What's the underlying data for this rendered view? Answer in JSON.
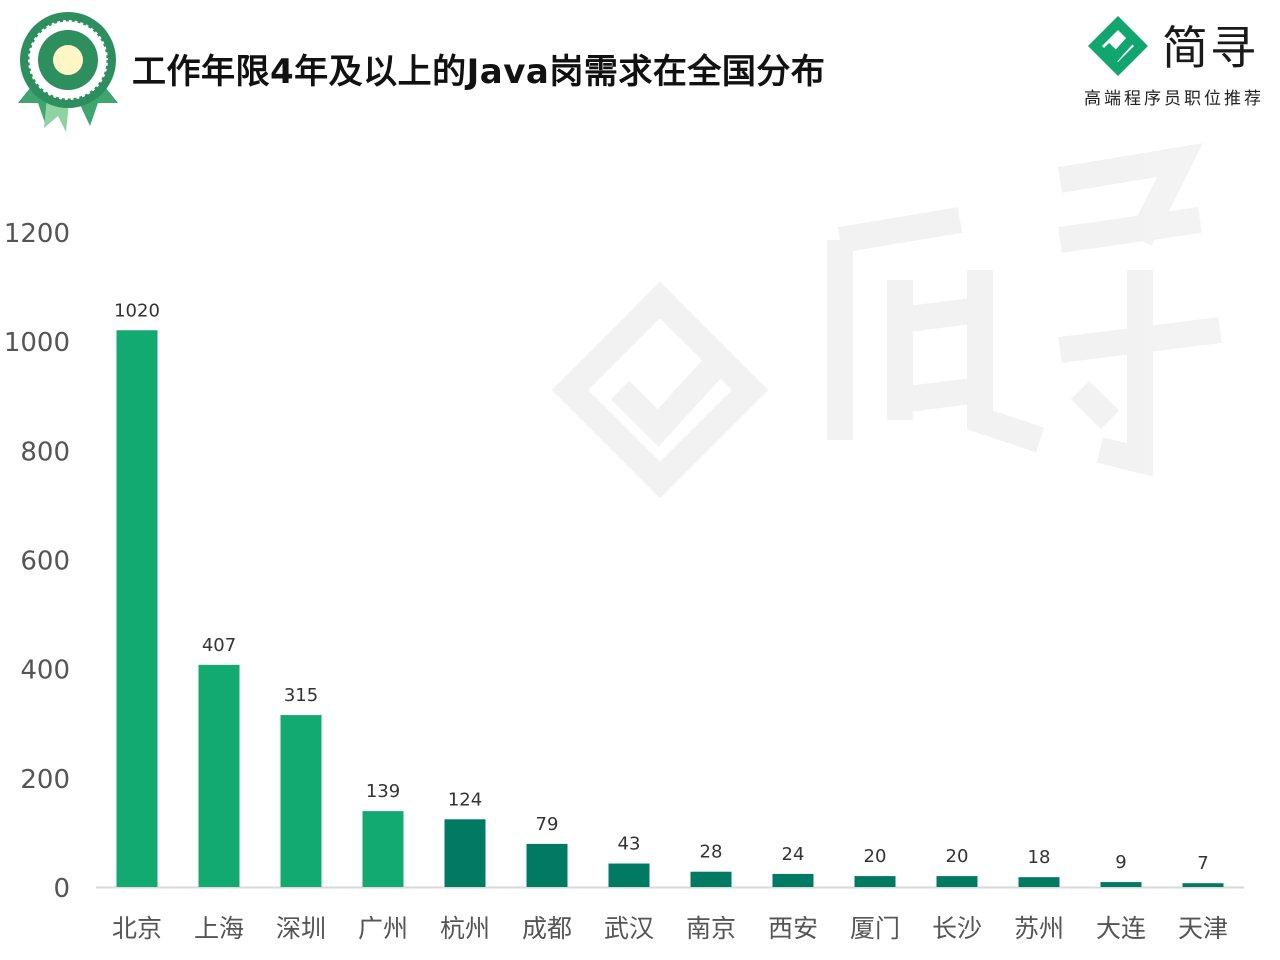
{
  "header": {
    "title": "工作年限4年及以上的Java岗需求在全国分布"
  },
  "brand": {
    "name": "简寻",
    "tagline": "高端程序员职位推荐",
    "color": "#11a66f"
  },
  "icons": {
    "badge": "award-ribbon-icon",
    "logo": "checkmark-logo-icon",
    "watermark": "brand-watermark-icon"
  },
  "chart_data": {
    "type": "bar",
    "categories": [
      "北京",
      "上海",
      "深圳",
      "广州",
      "杭州",
      "成都",
      "武汉",
      "南京",
      "西安",
      "厦门",
      "长沙",
      "苏州",
      "大连",
      "天津"
    ],
    "values": [
      1020,
      407,
      315,
      139,
      124,
      79,
      43,
      28,
      24,
      20,
      20,
      18,
      9,
      7
    ],
    "bar_colors": [
      "#13aa72",
      "#13aa72",
      "#13aa72",
      "#13aa72",
      "#007a63",
      "#007a63",
      "#007a63",
      "#007a63",
      "#007a63",
      "#007a63",
      "#007a63",
      "#007a63",
      "#007a63",
      "#007a63"
    ],
    "ylim": [
      0,
      1200
    ],
    "yticks": [
      0,
      200,
      400,
      600,
      800,
      1000,
      1200
    ],
    "grid": false,
    "legend": "none",
    "data_labels": true
  }
}
